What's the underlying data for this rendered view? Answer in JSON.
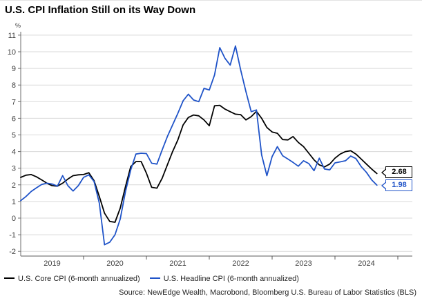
{
  "header": {
    "title": "U.S. CPI Inflation Still on its Way Down"
  },
  "source": {
    "text": "Source: NewEdge Wealth, Macrobond, Bloomberg U.S. Bureau of Labor Statistics (BLS)"
  },
  "chart_data": {
    "type": "line",
    "title": "U.S. CPI Inflation Still on its Way Down",
    "unit_label": "%",
    "ylim": [
      -2,
      11
    ],
    "ytick_labels": [
      "-2",
      "-1",
      "0",
      "1",
      "2",
      "3",
      "4",
      "5",
      "6",
      "7",
      "8",
      "9",
      "10",
      "11"
    ],
    "x_year_labels": [
      "2019",
      "2020",
      "2021",
      "2022",
      "2023",
      "2024"
    ],
    "x_start_month": "2019-01",
    "x_end_month": "2024-09",
    "grid": true,
    "legend_position": "bottom-left",
    "colors": {
      "grid": "#d9d9d9",
      "axis": "#6e6e6e",
      "tick_text": "#3c3c3c"
    },
    "series": [
      {
        "name": "U.S. Core CPI (6-month annualized)",
        "color": "#000000",
        "end_label": "2.68",
        "values": [
          2.45,
          2.58,
          2.62,
          2.48,
          2.3,
          2.1,
          1.95,
          1.92,
          2.1,
          2.35,
          2.55,
          2.6,
          2.62,
          2.73,
          2.25,
          1.3,
          0.3,
          -0.2,
          -0.25,
          0.6,
          1.9,
          3.1,
          3.4,
          3.4,
          2.7,
          1.85,
          1.8,
          2.4,
          3.2,
          4.0,
          4.7,
          5.6,
          6.05,
          6.2,
          6.15,
          5.9,
          5.55,
          6.75,
          6.78,
          6.55,
          6.4,
          6.25,
          6.22,
          5.9,
          6.1,
          6.42,
          6.0,
          5.45,
          5.18,
          5.1,
          4.72,
          4.7,
          4.9,
          4.55,
          4.3,
          3.9,
          3.5,
          3.2,
          3.08,
          3.25,
          3.6,
          3.85,
          4.0,
          4.05,
          3.85,
          3.55,
          3.25,
          2.95,
          2.68
        ]
      },
      {
        "name": "U.S. Headline CPI (6-month annualized)",
        "color": "#1F53C8",
        "end_label": "1.98",
        "values": [
          1.05,
          1.3,
          1.6,
          1.82,
          2.02,
          2.1,
          2.05,
          1.92,
          2.55,
          1.95,
          1.63,
          1.95,
          2.45,
          2.6,
          2.2,
          0.9,
          -1.6,
          -1.45,
          -1.0,
          -0.05,
          1.6,
          2.9,
          3.85,
          3.9,
          3.88,
          3.3,
          3.25,
          4.1,
          4.9,
          5.6,
          6.3,
          7.05,
          7.45,
          7.1,
          7.0,
          7.8,
          7.7,
          8.6,
          10.25,
          9.6,
          9.2,
          10.35,
          8.9,
          7.6,
          6.4,
          6.5,
          3.8,
          2.55,
          3.7,
          4.3,
          3.75,
          3.55,
          3.35,
          3.12,
          3.45,
          3.28,
          2.85,
          3.6,
          2.95,
          2.9,
          3.32,
          3.38,
          3.45,
          3.73,
          3.58,
          3.1,
          2.75,
          2.3,
          1.98
        ]
      }
    ]
  }
}
